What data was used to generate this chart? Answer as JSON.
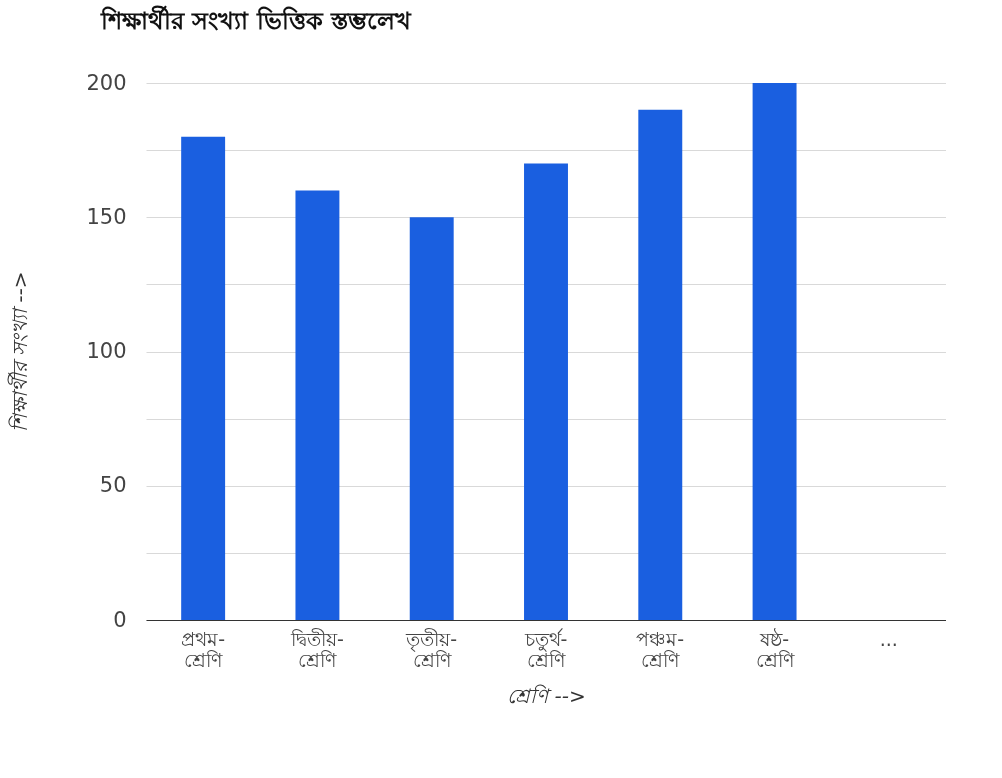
{
  "chart_data": {
    "type": "bar",
    "title": "শিক্ষার্থীর সংখ্যা ভিত্তিক স্তম্ভলেখ",
    "xlabel": "শ্রেণি -->",
    "ylabel": "শিক্ষার্থীর সংখ্যা -->",
    "categories": [
      "প্রথম-শ্রেণি",
      "দ্বিতীয়-শ্রেণি",
      "তৃতীয়-শ্রেণি",
      "চতুর্থ-শ্রেণি",
      "পঞ্চম-শ্রেণি",
      "ষষ্ঠ-শ্রেণি",
      "..."
    ],
    "values": [
      180,
      160,
      150,
      170,
      190,
      200,
      null
    ],
    "color": "#1a5fe0",
    "ylim": [
      0,
      200
    ],
    "yticks": [
      0,
      {
        "value": 25,
        "label": null
      },
      50,
      {
        "value": 75,
        "label": null
      },
      100,
      {
        "value": 125,
        "label": null
      },
      150,
      {
        "value": 175,
        "label": null
      },
      200
    ],
    "grid": true
  }
}
